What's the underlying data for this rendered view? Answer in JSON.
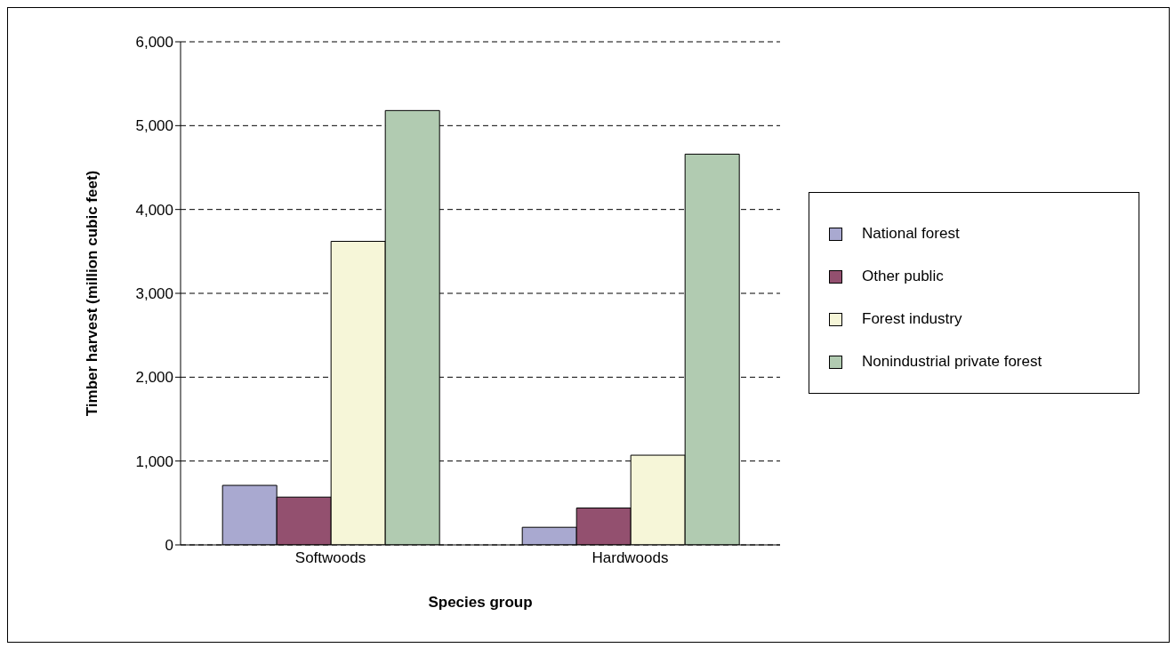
{
  "chart_data": {
    "type": "bar",
    "xlabel": "Species group",
    "ylabel": "Timber harvest (million cubic feet)",
    "categories": [
      "Softwoods",
      "Hardwoods"
    ],
    "series": [
      {
        "name": "National forest",
        "color": "#a9a9d0",
        "values": [
          710,
          210
        ]
      },
      {
        "name": "Other public",
        "color": "#93506f",
        "values": [
          570,
          440
        ]
      },
      {
        "name": "Forest industry",
        "color": "#f6f6d8",
        "values": [
          3620,
          1070
        ]
      },
      {
        "name": "Nonindustrial private forest",
        "color": "#b1cbb1",
        "values": [
          5180,
          4660
        ]
      }
    ],
    "ylim": [
      0,
      6000
    ],
    "yticks": [
      0,
      {
        "value": 1000,
        "label": "1,000"
      },
      {
        "value": 2000,
        "label": "2,000"
      },
      {
        "value": 3000,
        "label": "3,000"
      },
      {
        "value": 4000,
        "label": "4,000"
      },
      {
        "value": 5000,
        "label": "5,000"
      },
      {
        "value": 6000,
        "label": "6,000"
      }
    ],
    "grid": "y",
    "legend": "right"
  }
}
